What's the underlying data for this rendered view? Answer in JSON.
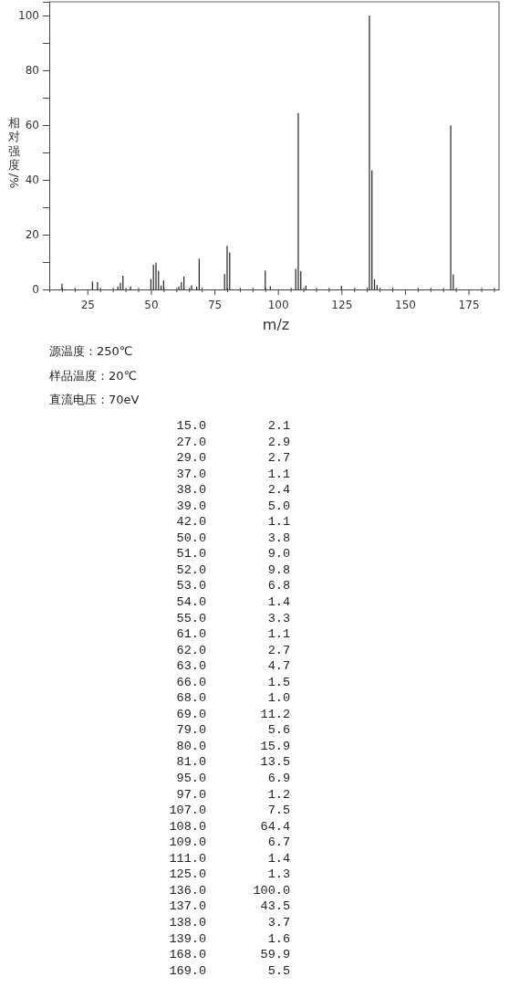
{
  "chart_data": [
    {
      "type": "bar",
      "color": "#222222",
      "x": [
        15,
        27,
        29,
        37,
        38,
        39,
        42,
        50,
        51,
        52,
        53,
        54,
        55,
        61,
        62,
        63,
        66,
        68,
        69,
        79,
        80,
        81,
        95,
        97,
        107,
        108,
        109,
        111,
        125,
        136,
        137,
        138,
        139,
        168,
        169
      ],
      "values": [
        2.1,
        2.9,
        2.7,
        1.1,
        2.4,
        5.0,
        1.1,
        3.8,
        9.0,
        9.8,
        6.8,
        1.4,
        3.3,
        1.1,
        2.7,
        4.7,
        1.5,
        1.0,
        11.2,
        5.6,
        15.9,
        13.5,
        6.9,
        1.2,
        7.5,
        64.4,
        6.7,
        1.4,
        1.3,
        100.0,
        43.5,
        3.7,
        1.6,
        59.9,
        5.5
      ],
      "xlim": [
        10,
        187
      ],
      "ylim": [
        0,
        105
      ],
      "xticks": [
        {
          "value": 10,
          "label": null
        },
        {
          "value": 15,
          "label": null
        },
        {
          "value": 20,
          "label": null
        },
        25,
        {
          "value": 30,
          "label": null
        },
        {
          "value": 35,
          "label": null
        },
        {
          "value": 40,
          "label": null
        },
        {
          "value": 45,
          "label": null
        },
        50,
        {
          "value": 55,
          "label": null
        },
        {
          "value": 60,
          "label": null
        },
        {
          "value": 65,
          "label": null
        },
        {
          "value": 70,
          "label": null
        },
        75,
        {
          "value": 80,
          "label": null
        },
        {
          "value": 85,
          "label": null
        },
        {
          "value": 90,
          "label": null
        },
        {
          "value": 95,
          "label": null
        },
        100,
        {
          "value": 105,
          "label": null
        },
        {
          "value": 110,
          "label": null
        },
        {
          "value": 115,
          "label": null
        },
        {
          "value": 120,
          "label": null
        },
        125,
        {
          "value": 130,
          "label": null
        },
        {
          "value": 135,
          "label": null
        },
        {
          "value": 140,
          "label": null
        },
        {
          "value": 145,
          "label": null
        },
        150,
        {
          "value": 155,
          "label": null
        },
        {
          "value": 160,
          "label": null
        },
        {
          "value": 165,
          "label": null
        },
        {
          "value": 170,
          "label": null
        },
        175,
        {
          "value": 180,
          "label": null
        },
        {
          "value": 185,
          "label": null
        }
      ],
      "yticks": [
        0,
        {
          "value": 10,
          "label": null
        },
        20,
        {
          "value": 30,
          "label": null
        },
        40,
        {
          "value": 50,
          "label": null
        },
        60,
        {
          "value": 70,
          "label": null
        },
        80,
        {
          "value": 90,
          "label": null
        },
        100
      ],
      "xlabel": "m/z",
      "ylabel": "相对强度/%",
      "annotations": [
        "源温度：250℃",
        "样品温度：20℃",
        "直流电压：70eV"
      ]
    },
    {
      "type": "other",
      "categories": [
        "15.0",
        "27.0",
        "29.0",
        "37.0",
        "38.0",
        "39.0",
        "42.0",
        "50.0",
        "51.0",
        "52.0",
        "53.0",
        "54.0",
        "55.0",
        "61.0",
        "62.0",
        "63.0",
        "66.0",
        "68.0",
        "69.0",
        "79.0",
        "80.0",
        "81.0",
        "95.0",
        "97.0",
        "107.0",
        "108.0",
        "109.0",
        "111.0",
        "125.0",
        "136.0",
        "137.0",
        "138.0",
        "139.0",
        "168.0",
        "169.0"
      ],
      "values": [
        2.1,
        2.9,
        2.7,
        1.1,
        2.4,
        5.0,
        1.1,
        3.8,
        9.0,
        9.8,
        6.8,
        1.4,
        3.3,
        1.1,
        2.7,
        4.7,
        1.5,
        1.0,
        11.2,
        5.6,
        15.9,
        13.5,
        6.9,
        1.2,
        7.5,
        64.4,
        6.7,
        1.4,
        1.3,
        100.0,
        43.5,
        3.7,
        1.6,
        59.9,
        5.5
      ],
      "value_labels": [
        "2.1",
        "2.9",
        "2.7",
        "1.1",
        "2.4",
        "5.0",
        "1.1",
        "3.8",
        "9.0",
        "9.8",
        "6.8",
        "1.4",
        "3.3",
        "1.1",
        "2.7",
        "4.7",
        "1.5",
        "1.0",
        "11.2",
        "5.6",
        "15.9",
        "13.5",
        "6.9",
        "1.2",
        "7.5",
        "64.4",
        "6.7",
        "1.4",
        "1.3",
        "100.0",
        "43.5",
        "3.7",
        "1.6",
        "59.9",
        "5.5"
      ]
    }
  ]
}
